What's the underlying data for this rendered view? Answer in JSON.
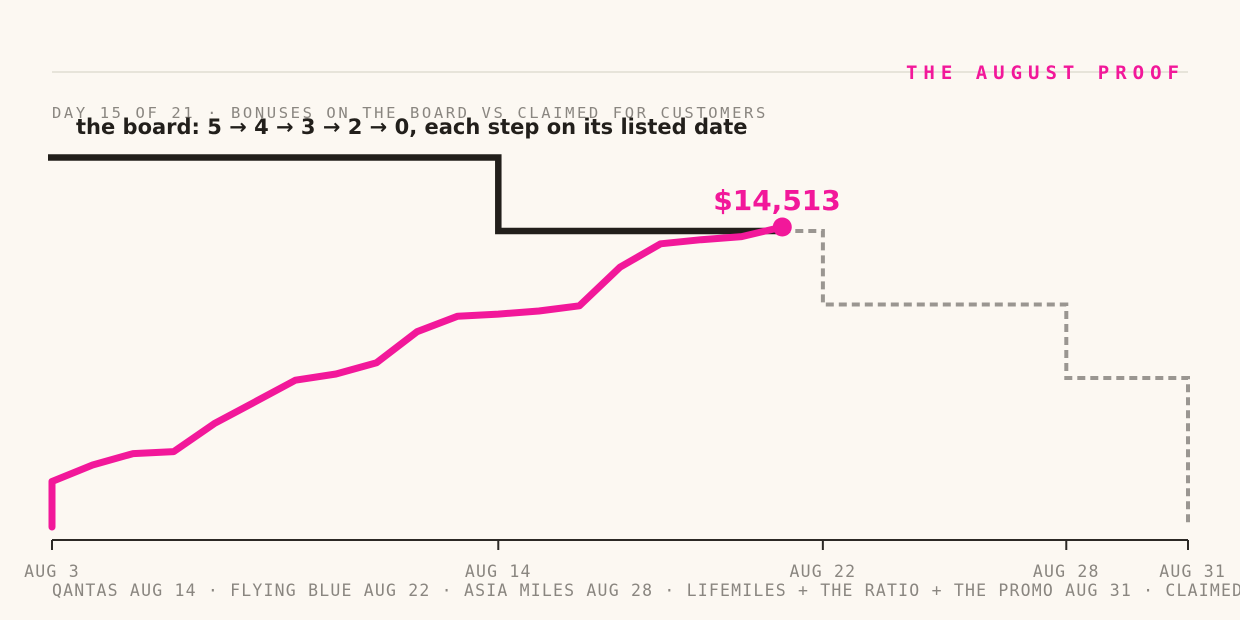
{
  "header": {
    "kicker": "THE AUGUST PROOF",
    "subtitle": "DAY 15 OF 21 · BONUSES ON THE BOARD VS CLAIMED FOR CUSTOMERS",
    "annotation": "the board: 5 → 4 → 3 → 2 → 0, each step on its listed date"
  },
  "footer": {
    "caption": "QANTAS AUG 14 · FLYING BLUE AUG 22 · ASIA MILES AUG 28 · LIFEMILES + THE RATIO + THE PROMO AUG 31 · CLAIMED"
  },
  "colors": {
    "background": "#fcf8f2",
    "accent": "#f2189a",
    "board": "#221f1b",
    "projected": "#9a9691",
    "axis": "#2c2925",
    "rule": "#e0ddd2",
    "muted_text": "#8a8680"
  },
  "chart_data": {
    "type": "line",
    "x_axis": {
      "domain": [
        "2024-08-03",
        "2024-08-31"
      ],
      "ticks": [
        {
          "date": "2024-08-03",
          "label": "AUG 3"
        },
        {
          "date": "2024-08-14",
          "label": "AUG 14"
        },
        {
          "date": "2024-08-22",
          "label": "AUG 22"
        },
        {
          "date": "2024-08-28",
          "label": "AUG 28"
        },
        {
          "date": "2024-08-31",
          "label": "AUG 31"
        }
      ]
    },
    "grid": false,
    "series": [
      {
        "role": "claimed",
        "color": "#f2189a",
        "x": [
          "2024-08-03",
          "2024-08-03",
          "2024-08-04",
          "2024-08-05",
          "2024-08-06",
          "2024-08-07",
          "2024-08-08",
          "2024-08-09",
          "2024-08-10",
          "2024-08-11",
          "2024-08-12",
          "2024-08-13",
          "2024-08-14",
          "2024-08-15",
          "2024-08-16",
          "2024-08-17",
          "2024-08-18",
          "2024-08-19",
          "2024-08-20",
          "2024-08-21"
        ],
        "y": [
          0,
          2200,
          3000,
          3550,
          3650,
          5000,
          6050,
          7100,
          7400,
          7950,
          9450,
          10200,
          10300,
          10450,
          10700,
          12570,
          13700,
          13900,
          14050,
          14513
        ],
        "end_label": "$14,513"
      },
      {
        "role": "board",
        "color": "#221f1b",
        "style": "solid",
        "steps": [
          {
            "date": "2024-08-03",
            "value": 5
          },
          {
            "date": "2024-08-14",
            "value": 4
          },
          {
            "date": "2024-08-21",
            "value": 4
          }
        ]
      },
      {
        "role": "board-scheduled",
        "color": "#9a9691",
        "style": "dotted",
        "steps": [
          {
            "date": "2024-08-21",
            "value": 4
          },
          {
            "date": "2024-08-22",
            "value": 3
          },
          {
            "date": "2024-08-28",
            "value": 2
          },
          {
            "date": "2024-08-31",
            "value": 0
          }
        ]
      }
    ]
  }
}
